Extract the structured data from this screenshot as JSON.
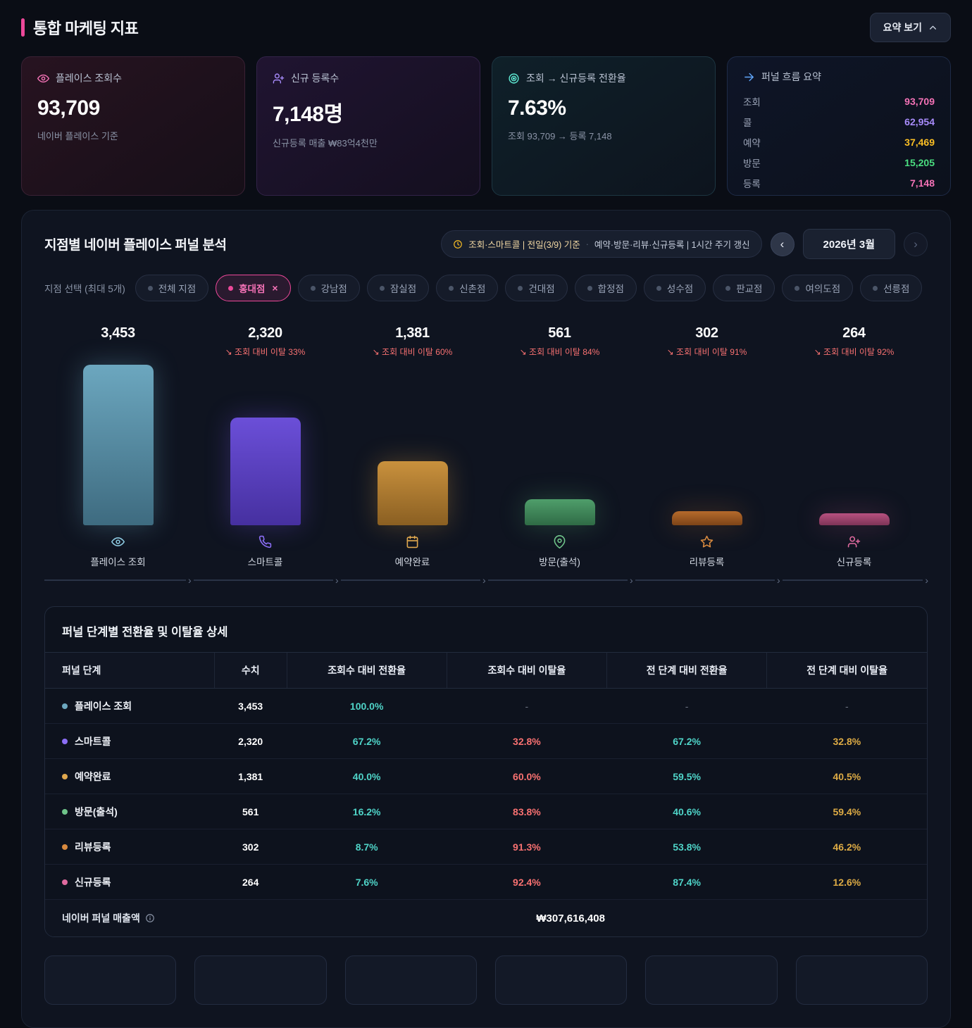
{
  "colors": {
    "accent": "#ec4899",
    "conversion": "#4fd4c8",
    "drop_vs_view": "#f87171",
    "drop_vs_prev": "#ddab45"
  },
  "header": {
    "title": "통합 마케팅 지표",
    "summary_button": "요약 보기"
  },
  "kpis": [
    {
      "icon": "eye-icon",
      "icon_color": "#f472b6",
      "label": "플레이스 조회수",
      "value": "93,709",
      "subtitle": "네이버 플레이스 기준"
    },
    {
      "icon": "user-plus-icon",
      "icon_color": "#a78bfa",
      "label": "신규 등록수",
      "value": "7,148명",
      "subtitle": "신규등록 매출 ₩83억4천만"
    },
    {
      "icon": "target-icon",
      "icon_color": "#5eead4",
      "label": "조회 → 신규등록 전환율",
      "value": "7.63%",
      "subtitle": "조회 93,709 → 등록 7,148"
    }
  ],
  "funnel_summary": {
    "icon": "arrow-right-icon",
    "icon_color": "#60a5fa",
    "label": "퍼널 흐름 요약",
    "rows": [
      {
        "label": "조회",
        "value": "93,709",
        "color": "#f472b6"
      },
      {
        "label": "콜",
        "value": "62,954",
        "color": "#a78bfa"
      },
      {
        "label": "예약",
        "value": "37,469",
        "color": "#fbbf24"
      },
      {
        "label": "방문",
        "value": "15,205",
        "color": "#4ade80"
      },
      {
        "label": "등록",
        "value": "7,148",
        "color": "#f472b6"
      }
    ]
  },
  "panel": {
    "title": "지점별 네이버 플레이스 퍼널 분석",
    "meta_part1": "조회·스마트콜 | 전일(3/9) 기준",
    "meta_sep": "·",
    "meta_part2": "예약·방문·리뷰·신규등록 | 1시간 주기 갱신",
    "month": "2026년 3월",
    "branch_select_label": "지점 선택 (최대 5개)",
    "branches": [
      {
        "label": "전체 지점",
        "selected": false
      },
      {
        "label": "홍대점",
        "selected": true
      },
      {
        "label": "강남점",
        "selected": false
      },
      {
        "label": "잠실점",
        "selected": false
      },
      {
        "label": "신촌점",
        "selected": false
      },
      {
        "label": "건대점",
        "selected": false
      },
      {
        "label": "합정점",
        "selected": false
      },
      {
        "label": "성수점",
        "selected": false
      },
      {
        "label": "판교점",
        "selected": false
      },
      {
        "label": "여의도점",
        "selected": false
      },
      {
        "label": "선릉점",
        "selected": false
      }
    ]
  },
  "chart_data": {
    "type": "bar",
    "title": "지점별 네이버 플레이스 퍼널 분석 (홍대점)",
    "categories": [
      "플레이스 조회",
      "스마트콜",
      "예약완료",
      "방문(출석)",
      "리뷰등록",
      "신규등록"
    ],
    "values": [
      3453,
      2320,
      1381,
      561,
      302,
      264
    ],
    "value_labels": [
      "3,453",
      "2,320",
      "1,381",
      "561",
      "302",
      "264"
    ],
    "drop_vs_view_labels": [
      "",
      "↘ 조회 대비 이탈 33%",
      "↘ 조회 대비 이탈 60%",
      "↘ 조회 대비 이탈 84%",
      "↘ 조회 대비 이탈 91%",
      "↘ 조회 대비 이탈 92%"
    ],
    "ylim": [
      0,
      3453
    ],
    "grid": false,
    "bar_colors": [
      "#6ca7bf",
      "#6b4fd8",
      "#c9913d",
      "#4f9e6b",
      "#b56a2c",
      "#b7517f"
    ],
    "bar_colors_dark": [
      "#3e6b80",
      "#4630a0",
      "#8a5f22",
      "#2f6b45",
      "#7d4418",
      "#7e3457"
    ],
    "icon_colors": [
      "#8ecbe2",
      "#8b6ef5",
      "#e0a84e",
      "#6fc48a",
      "#d98a3f",
      "#e06a9f"
    ],
    "icons": [
      "eye-icon",
      "phone-icon",
      "calendar-icon",
      "map-pin-icon",
      "star-icon",
      "user-plus-icon"
    ]
  },
  "table": {
    "title": "퍼널 단계별 전환율 및 이탈율 상세",
    "headers": [
      "퍼널 단계",
      "수치",
      "조회수 대비 전환율",
      "조회수 대비 이탈율",
      "전 단계 대비 전환율",
      "전 단계 대비 이탈율"
    ],
    "rows": [
      {
        "stage": "플레이스 조회",
        "dot": "#6ca7bf",
        "value": "3,453",
        "conv_view": "100.0%",
        "drop_view": "-",
        "conv_prev": "-",
        "drop_prev": "-"
      },
      {
        "stage": "스마트콜",
        "dot": "#8b6ef5",
        "value": "2,320",
        "conv_view": "67.2%",
        "drop_view": "32.8%",
        "conv_prev": "67.2%",
        "drop_prev": "32.8%"
      },
      {
        "stage": "예약완료",
        "dot": "#e0a84e",
        "value": "1,381",
        "conv_view": "40.0%",
        "drop_view": "60.0%",
        "conv_prev": "59.5%",
        "drop_prev": "40.5%"
      },
      {
        "stage": "방문(출석)",
        "dot": "#6fc48a",
        "value": "561",
        "conv_view": "16.2%",
        "drop_view": "83.8%",
        "conv_prev": "40.6%",
        "drop_prev": "59.4%"
      },
      {
        "stage": "리뷰등록",
        "dot": "#d98a3f",
        "value": "302",
        "conv_view": "8.7%",
        "drop_view": "91.3%",
        "conv_prev": "53.8%",
        "drop_prev": "46.2%"
      },
      {
        "stage": "신규등록",
        "dot": "#e06a9f",
        "value": "264",
        "conv_view": "7.6%",
        "drop_view": "92.4%",
        "conv_prev": "87.4%",
        "drop_prev": "12.6%"
      }
    ],
    "footer_label": "네이버 퍼널 매출액",
    "footer_value": "₩307,616,408"
  }
}
